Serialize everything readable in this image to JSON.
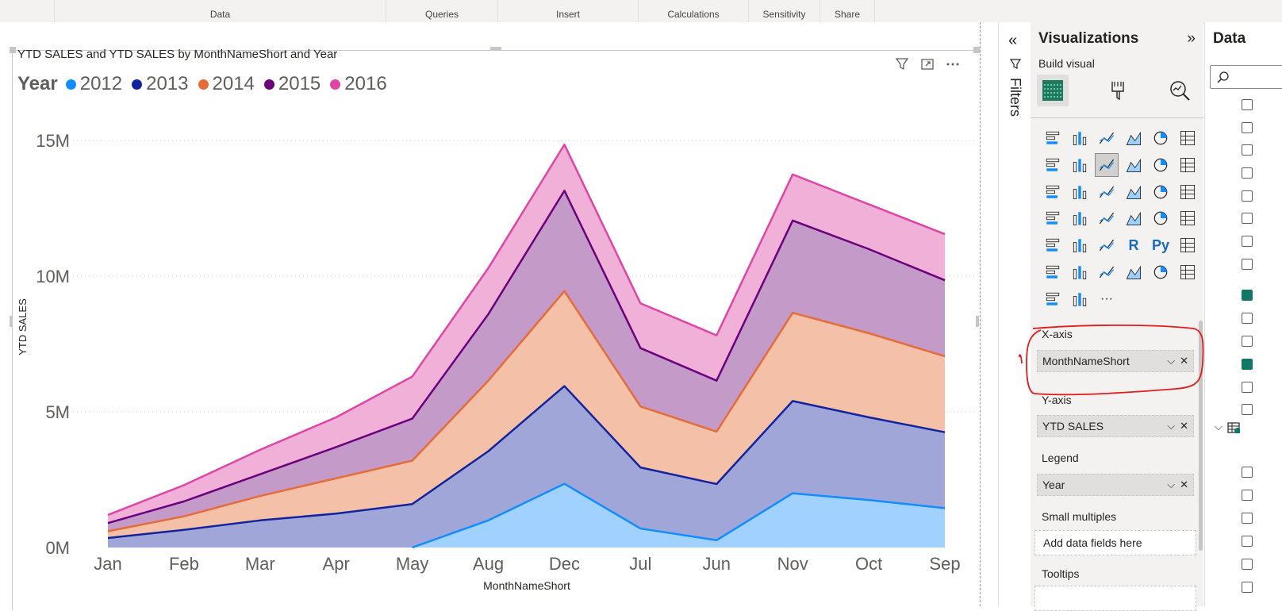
{
  "ribbon": {
    "groups": [
      "Data",
      "Queries",
      "Insert",
      "Calculations",
      "Sensitivity",
      "Share"
    ]
  },
  "visual": {
    "title": "YTD SALES and YTD SALES by MonthNameShort and Year",
    "legend_title": "Year",
    "header_icons": [
      "filter-icon",
      "focus-mode-icon",
      "more-options-icon"
    ]
  },
  "chart_data": {
    "type": "area",
    "stacked": true,
    "title": "YTD SALES and YTD SALES by MonthNameShort and Year",
    "xlabel": "MonthNameShort",
    "ylabel": "YTD SALES",
    "categories": [
      "Jan",
      "Feb",
      "Mar",
      "Apr",
      "May",
      "Aug",
      "Dec",
      "Jul",
      "Jun",
      "Nov",
      "Oct",
      "Sep"
    ],
    "ylim": [
      0,
      15500000
    ],
    "yticks": [
      0,
      5000000,
      10000000,
      15000000
    ],
    "ytick_labels": [
      "0M",
      "5M",
      "10M",
      "15M"
    ],
    "grid": true,
    "legend_position": "top-left",
    "series": [
      {
        "name": "2012",
        "color": "#118dff",
        "fill": "#a0d1ff",
        "values": [
          null,
          null,
          null,
          null,
          0,
          1000000,
          2350000,
          700000,
          270000,
          2000000,
          1750000,
          1450000
        ]
      },
      {
        "name": "2013",
        "color": "#12239e",
        "fill": "#a0a7d8",
        "values": [
          350000,
          650000,
          1000000,
          1250000,
          1600000,
          2550000,
          3600000,
          2250000,
          2070000,
          3400000,
          3050000,
          2800000
        ]
      },
      {
        "name": "2014",
        "color": "#e66c37",
        "fill": "#f4c0a8",
        "values": [
          250000,
          500000,
          900000,
          1300000,
          1600000,
          2600000,
          3500000,
          2250000,
          1930000,
          3250000,
          3100000,
          2800000
        ]
      },
      {
        "name": "2015",
        "color": "#6b007b",
        "fill": "#c49ac9",
        "values": [
          300000,
          550000,
          800000,
          1150000,
          1550000,
          2450000,
          3700000,
          2150000,
          1880000,
          3400000,
          3100000,
          2800000
        ]
      },
      {
        "name": "2016",
        "color": "#e044a7",
        "fill": "#f1b0d8",
        "values": [
          300000,
          600000,
          900000,
          1100000,
          1550000,
          1700000,
          1700000,
          1650000,
          1670000,
          1700000,
          1650000,
          1700000
        ]
      }
    ]
  },
  "filters": {
    "label": "Filters"
  },
  "viz_pane": {
    "title": "Visualizations",
    "build_visual": "Build visual",
    "x_axis_label": "X-axis",
    "x_axis_field": "MonthNameShort",
    "y_axis_label": "Y-axis",
    "y_axis_field": "YTD SALES",
    "legend_label": "Legend",
    "legend_field": "Year",
    "small_multiples_label": "Small multiples",
    "small_multiples_placeholder": "Add data fields here",
    "tooltips_label": "Tooltips",
    "grid_more": "···",
    "r_visual": "R",
    "py_visual": "Py"
  },
  "data_pane": {
    "title": "Data"
  }
}
